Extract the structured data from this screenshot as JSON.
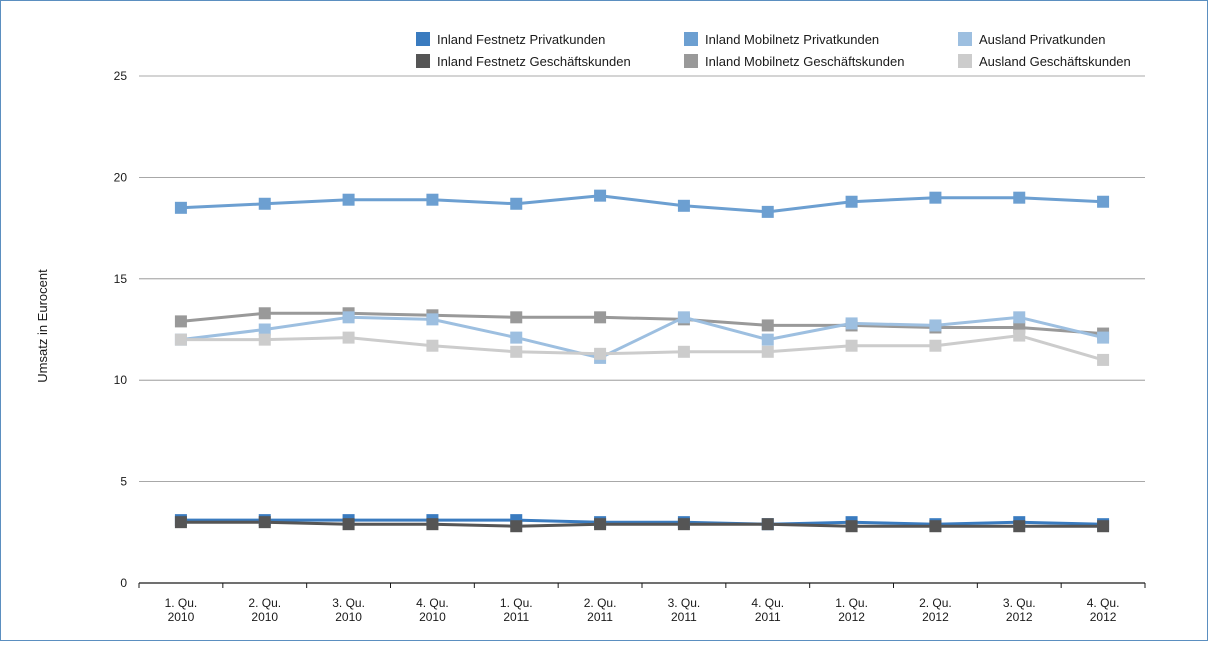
{
  "chart_data": {
    "type": "line",
    "title": "",
    "xlabel": "",
    "ylabel": "Umsatz in Eurocent",
    "ylim": [
      0,
      25
    ],
    "yticks": [
      "0",
      "5",
      "10",
      "15",
      "20",
      "25"
    ],
    "ytick_values": [
      0,
      5,
      10,
      15,
      20,
      25
    ],
    "grid": true,
    "legend_position": "top-right",
    "categories": [
      [
        "1. Qu.",
        "2010"
      ],
      [
        "2. Qu.",
        "2010"
      ],
      [
        "3. Qu.",
        "2010"
      ],
      [
        "4. Qu.",
        "2010"
      ],
      [
        "1. Qu.",
        "2011"
      ],
      [
        "2. Qu.",
        "2011"
      ],
      [
        "3. Qu.",
        "2011"
      ],
      [
        "4. Qu.",
        "2011"
      ],
      [
        "1. Qu.",
        "2012"
      ],
      [
        "2. Qu.",
        "2012"
      ],
      [
        "3. Qu.",
        "2012"
      ],
      [
        "4. Qu.",
        "2012"
      ]
    ],
    "series": [
      {
        "name": "Inland Festnetz Privatkunden",
        "color": "#3a7bbf",
        "values": [
          3.1,
          3.1,
          3.1,
          3.1,
          3.1,
          3.0,
          3.0,
          2.9,
          3.0,
          2.9,
          3.0,
          2.9
        ]
      },
      {
        "name": "Inland Festnetz Geschäftskunden",
        "color": "#555555",
        "values": [
          3.0,
          3.0,
          2.9,
          2.9,
          2.8,
          2.9,
          2.9,
          2.9,
          2.8,
          2.8,
          2.8,
          2.8
        ]
      },
      {
        "name": "Inland Mobilnetz Privatkunden",
        "color": "#6c9fd1",
        "values": [
          18.5,
          18.7,
          18.9,
          18.9,
          18.7,
          19.1,
          18.6,
          18.3,
          18.8,
          19.0,
          19.0,
          18.8
        ]
      },
      {
        "name": "Inland Mobilnetz Geschäftskunden",
        "color": "#999999",
        "values": [
          12.9,
          13.3,
          13.3,
          13.2,
          13.1,
          13.1,
          13.0,
          12.7,
          12.7,
          12.6,
          12.6,
          12.3
        ]
      },
      {
        "name": "Ausland Privatkunden",
        "color": "#9dbfe0",
        "values": [
          12.0,
          12.5,
          13.1,
          13.0,
          12.1,
          11.1,
          13.1,
          12.0,
          12.8,
          12.7,
          13.1,
          12.1
        ]
      },
      {
        "name": "Ausland Geschäftskunden",
        "color": "#cccccc",
        "values": [
          12.0,
          12.0,
          12.1,
          11.7,
          11.4,
          11.3,
          11.4,
          11.4,
          11.7,
          11.7,
          12.2,
          11.0
        ]
      }
    ]
  }
}
